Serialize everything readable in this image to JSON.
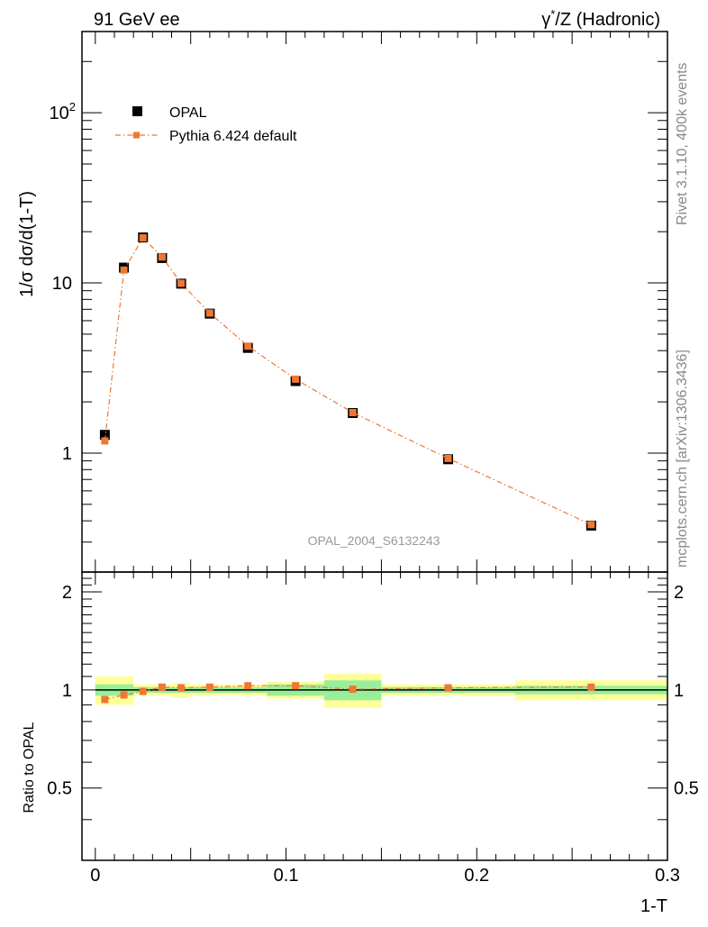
{
  "header": {
    "left": "91 GeV ee",
    "right_prefix": "γ",
    "right_sup": "*",
    "right_suffix": "/Z (Hadronic)"
  },
  "side_labels": {
    "rivet": "Rivet 3.1.10,  400k events",
    "mcplots": "mcplots.cern.ch [arXiv:1306.3436]"
  },
  "watermark": "OPAL_2004_S6132243",
  "colors": {
    "data": "#000000",
    "mc": "#ee7733",
    "band_stat": "#99ee99",
    "band_total": "#ffff99",
    "ref_line": "#000000"
  },
  "chart_data": [
    {
      "type": "scatter",
      "name": "main",
      "ylabel_parts": [
        "1/",
        "σ",
        " d",
        "σ",
        "/d(1-T)"
      ],
      "xlabel": "1-T",
      "xlim": [
        -0.007,
        0.3
      ],
      "ylim": [
        0.2,
        300
      ],
      "yscale": "log",
      "yticks": [
        {
          "value": 1,
          "label": "1"
        },
        {
          "value": 10,
          "label": "10"
        },
        {
          "value": 100,
          "label": "10",
          "sup": "2"
        }
      ],
      "legend_position": "top-left",
      "series": [
        {
          "name": "OPAL",
          "marker": "square",
          "x": [
            0.005,
            0.015,
            0.025,
            0.035,
            0.045,
            0.06,
            0.08,
            0.105,
            0.135,
            0.185,
            0.26
          ],
          "values": [
            1.28,
            12.3,
            18.5,
            14.0,
            9.9,
            6.6,
            4.15,
            2.65,
            1.72,
            0.92,
            0.375
          ]
        },
        {
          "name": "Pythia 6.424 default",
          "marker": "square-dashdot",
          "x": [
            0.005,
            0.015,
            0.025,
            0.035,
            0.045,
            0.06,
            0.08,
            0.105,
            0.135,
            0.185,
            0.26
          ],
          "values": [
            1.18,
            11.9,
            18.4,
            14.2,
            9.95,
            6.65,
            4.25,
            2.72,
            1.73,
            0.93,
            0.38
          ]
        }
      ]
    },
    {
      "type": "scatter",
      "name": "ratio",
      "ylabel": "Ratio to OPAL",
      "xlabel": "1-T",
      "xlim": [
        -0.007,
        0.3
      ],
      "ylim": [
        0.3,
        2.3
      ],
      "yscale": "log",
      "yticks": [
        {
          "value": 0.5,
          "label": "0.5"
        },
        {
          "value": 1,
          "label": "1"
        },
        {
          "value": 2,
          "label": "2"
        }
      ],
      "xticks": [
        {
          "value": 0,
          "label": "0"
        },
        {
          "value": 0.1,
          "label": "0.1"
        },
        {
          "value": 0.2,
          "label": "0.2"
        },
        {
          "value": 0.3,
          "label": "0.3"
        }
      ],
      "bins": [
        {
          "lo": 0.0,
          "hi": 0.01,
          "stat": 0.04,
          "total": 0.1
        },
        {
          "lo": 0.01,
          "hi": 0.02,
          "stat": 0.04,
          "total": 0.1
        },
        {
          "lo": 0.02,
          "hi": 0.03,
          "stat": 0.02,
          "total": 0.04
        },
        {
          "lo": 0.03,
          "hi": 0.04,
          "stat": 0.02,
          "total": 0.04
        },
        {
          "lo": 0.04,
          "hi": 0.05,
          "stat": 0.02,
          "total": 0.05
        },
        {
          "lo": 0.05,
          "hi": 0.07,
          "stat": 0.02,
          "total": 0.04
        },
        {
          "lo": 0.07,
          "hi": 0.09,
          "stat": 0.02,
          "total": 0.04
        },
        {
          "lo": 0.09,
          "hi": 0.12,
          "stat": 0.04,
          "total": 0.06
        },
        {
          "lo": 0.12,
          "hi": 0.15,
          "stat": 0.07,
          "total": 0.12
        },
        {
          "lo": 0.15,
          "hi": 0.22,
          "stat": 0.02,
          "total": 0.04
        },
        {
          "lo": 0.22,
          "hi": 0.3,
          "stat": 0.03,
          "total": 0.07
        }
      ],
      "series": [
        {
          "name": "Pythia 6.424 default",
          "x": [
            0.005,
            0.015,
            0.025,
            0.035,
            0.045,
            0.06,
            0.08,
            0.105,
            0.135,
            0.185,
            0.26
          ],
          "values": [
            0.935,
            0.965,
            0.99,
            1.02,
            1.015,
            1.02,
            1.03,
            1.03,
            1.005,
            1.015,
            1.02
          ]
        }
      ]
    }
  ]
}
